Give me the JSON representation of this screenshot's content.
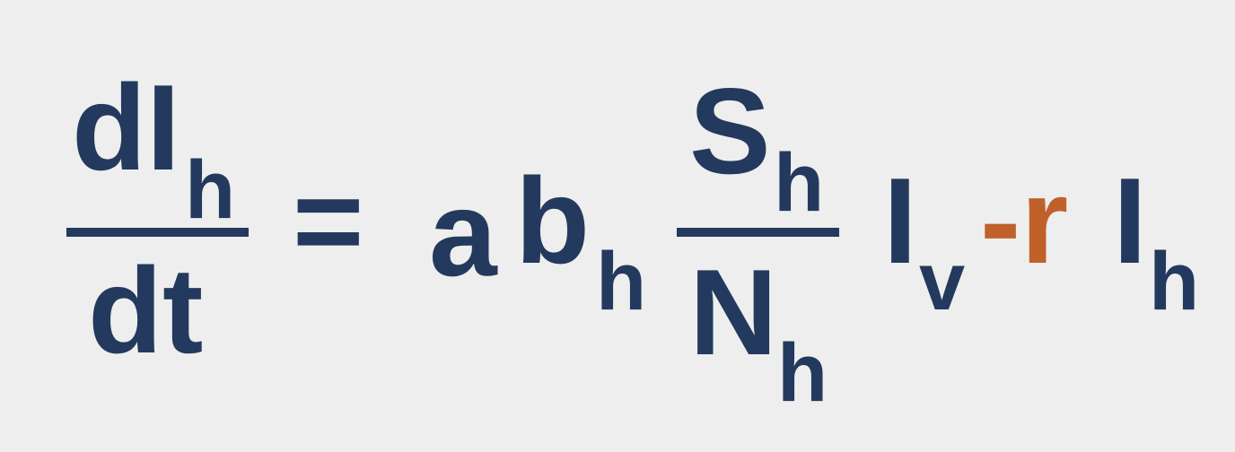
{
  "colors": {
    "background": "#eeeeee",
    "text": "#233a5e",
    "accent": "#c0602a"
  },
  "equation": {
    "lhs": {
      "numerator": {
        "base": "dI",
        "subscript": "h"
      },
      "denominator": "dt"
    },
    "equals": "=",
    "coef_a": "a",
    "coef_b": {
      "base": "b",
      "subscript": "h"
    },
    "fraction": {
      "numerator": {
        "base": "S",
        "subscript": "h"
      },
      "denominator": {
        "base": "N",
        "subscript": "h"
      }
    },
    "iv": {
      "base": "I",
      "subscript": "v"
    },
    "minus_r": "-r",
    "ih": {
      "base": "I",
      "subscript": "h"
    }
  }
}
